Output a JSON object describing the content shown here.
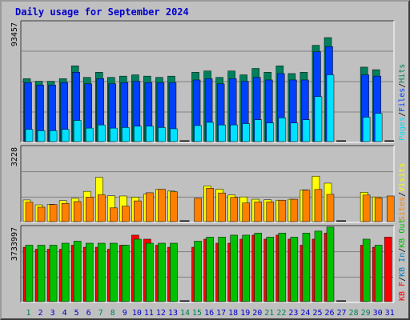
{
  "title": "Daily usage for September 2024",
  "colors": {
    "hits": "#00805c",
    "files": "#0040ff",
    "pages": "#00e0ff",
    "visits": "#ffff00",
    "sites": "#ff8000",
    "kb_f": "#ff0000",
    "kb_in": "#0080c0",
    "kb_out": "#00c000",
    "weekend_day": "#00805c",
    "weekday": "#0000cc",
    "separator": "#000000"
  },
  "chart_data": [
    {
      "type": "bar",
      "panel": "hits-files-pages",
      "ymax_label": "93457",
      "ylim": [
        0,
        93457
      ],
      "grid": true,
      "legend_position": "right, vertical",
      "legend": [
        {
          "label": "Pages",
          "color": "#00e0ff"
        },
        {
          "label": "/",
          "color": "#000000"
        },
        {
          "label": "Files",
          "color": "#0040ff"
        },
        {
          "label": "/",
          "color": "#000000"
        },
        {
          "label": "Hits",
          "color": "#00805c"
        }
      ],
      "categories": [
        "1",
        "2",
        "3",
        "4",
        "5",
        "6",
        "7",
        "8",
        "9",
        "10",
        "11",
        "12",
        "13",
        "14",
        "15",
        "16",
        "17",
        "18",
        "19",
        "20",
        "21",
        "22",
        "23",
        "24",
        "25",
        "26",
        "27",
        "28",
        "29",
        "30",
        "31"
      ],
      "series": [
        {
          "name": "Hits",
          "values": [
            49000,
            47000,
            47000,
            49000,
            59000,
            50000,
            54000,
            50000,
            51000,
            52000,
            51000,
            50000,
            51000,
            0,
            54000,
            55000,
            50000,
            55000,
            52000,
            57000,
            54000,
            59000,
            53000,
            54000,
            75000,
            81000,
            0,
            0,
            58000,
            56000,
            0
          ]
        },
        {
          "name": "Files",
          "values": [
            46000,
            44000,
            44000,
            46000,
            54000,
            45000,
            49000,
            45000,
            46000,
            47000,
            46000,
            46000,
            46000,
            0,
            48000,
            49000,
            45000,
            49000,
            47000,
            50000,
            48000,
            53000,
            48000,
            48000,
            70000,
            74000,
            0,
            0,
            52000,
            51000,
            0
          ]
        },
        {
          "name": "Pages",
          "values": [
            9500,
            8500,
            8500,
            9500,
            16500,
            10500,
            13000,
            10500,
            11000,
            12000,
            12000,
            11000,
            10000,
            0,
            12500,
            15000,
            13000,
            13000,
            14000,
            17000,
            14500,
            18500,
            14500,
            17000,
            35000,
            52000,
            0,
            0,
            19000,
            22000,
            0
          ]
        }
      ],
      "extra_small_bars": {
        "14": 2,
        "27": 2,
        "31": 0
      }
    },
    {
      "type": "bar",
      "panel": "visits-sites",
      "ymax_label": "3228",
      "ylim": [
        0,
        3228
      ],
      "grid": true,
      "legend_position": "right, vertical",
      "legend": [
        {
          "label": "Sites",
          "color": "#ff8000"
        },
        {
          "label": "/",
          "color": "#000000"
        },
        {
          "label": "Visits",
          "color": "#ffff00"
        }
      ],
      "categories": [
        "1",
        "2",
        "3",
        "4",
        "5",
        "6",
        "7",
        "8",
        "9",
        "10",
        "11",
        "12",
        "13",
        "14",
        "15",
        "16",
        "17",
        "18",
        "19",
        "20",
        "21",
        "22",
        "23",
        "24",
        "25",
        "26",
        "27",
        "28",
        "29",
        "30",
        "31"
      ],
      "series": [
        {
          "name": "Visits",
          "values": [
            930,
            720,
            740,
            900,
            1000,
            1300,
            1900,
            1110,
            1100,
            1050,
            1180,
            1380,
            1310,
            0,
            0,
            1530,
            1390,
            1140,
            1060,
            960,
            940,
            920,
            960,
            1360,
            1950,
            1650,
            0,
            0,
            1260,
            1060,
            0
          ]
        },
        {
          "name": "Sites",
          "values": [
            830,
            620,
            730,
            780,
            860,
            1050,
            1150,
            590,
            660,
            890,
            1240,
            1390,
            1280,
            0,
            1000,
            1430,
            1230,
            1040,
            800,
            840,
            840,
            920,
            960,
            1350,
            1380,
            1170,
            0,
            0,
            1140,
            1020,
            1100
          ]
        }
      ],
      "extra_small_bars": {
        "14": 2,
        "27": 2
      }
    },
    {
      "type": "bar",
      "panel": "kbytes",
      "ymax_label": "3733997",
      "ylim": [
        0,
        3733997
      ],
      "grid": true,
      "legend_position": "right, vertical",
      "legend": [
        {
          "label": "KB F",
          "color": "#ff0000"
        },
        {
          "label": "/",
          "color": "#000000"
        },
        {
          "label": "KB In",
          "color": "#0080c0"
        },
        {
          "label": "/",
          "color": "#000000"
        },
        {
          "label": "KB Out",
          "color": "#00c000"
        }
      ],
      "categories": [
        "1",
        "2",
        "3",
        "4",
        "5",
        "6",
        "7",
        "8",
        "9",
        "10",
        "11",
        "12",
        "13",
        "14",
        "15",
        "16",
        "17",
        "18",
        "19",
        "20",
        "21",
        "22",
        "23",
        "24",
        "25",
        "26",
        "27",
        "28",
        "29",
        "30",
        "31"
      ],
      "series": [
        {
          "name": "KB F",
          "values": [
            2700000,
            2600000,
            2600000,
            2600000,
            2800000,
            2700000,
            2700000,
            2600000,
            2800000,
            3300000,
            3100000,
            2800000,
            2700000,
            0,
            2700000,
            3100000,
            2900000,
            2900000,
            3100000,
            3300000,
            3100000,
            3300000,
            3100000,
            2800000,
            3100000,
            3400000,
            0,
            0,
            2800000,
            2700000,
            3200000
          ]
        },
        {
          "name": "KB Out",
          "values": [
            2800000,
            2800000,
            2800000,
            2900000,
            3000000,
            2900000,
            2900000,
            2900000,
            2800000,
            3100000,
            2900000,
            2900000,
            2900000,
            0,
            3000000,
            3200000,
            3200000,
            3300000,
            3300000,
            3400000,
            3200000,
            3400000,
            3200000,
            3400000,
            3500000,
            3700000,
            0,
            0,
            3100000,
            2800000,
            0
          ]
        }
      ],
      "extra_small_bars": {
        "14": 2,
        "27": 2
      }
    }
  ],
  "x_labels": [
    {
      "label": "1",
      "weekend": true
    },
    {
      "label": "2",
      "weekend": false
    },
    {
      "label": "3",
      "weekend": false
    },
    {
      "label": "4",
      "weekend": false
    },
    {
      "label": "5",
      "weekend": false
    },
    {
      "label": "6",
      "weekend": false
    },
    {
      "label": "7",
      "weekend": true
    },
    {
      "label": "8",
      "weekend": true
    },
    {
      "label": "9",
      "weekend": false
    },
    {
      "label": "10",
      "weekend": false
    },
    {
      "label": "11",
      "weekend": false
    },
    {
      "label": "12",
      "weekend": false
    },
    {
      "label": "13",
      "weekend": false
    },
    {
      "label": "14",
      "weekend": true
    },
    {
      "label": "15",
      "weekend": true
    },
    {
      "label": "16",
      "weekend": false
    },
    {
      "label": "17",
      "weekend": false
    },
    {
      "label": "18",
      "weekend": false
    },
    {
      "label": "19",
      "weekend": false
    },
    {
      "label": "20",
      "weekend": false
    },
    {
      "label": "21",
      "weekend": true
    },
    {
      "label": "22",
      "weekend": true
    },
    {
      "label": "23",
      "weekend": false
    },
    {
      "label": "24",
      "weekend": false
    },
    {
      "label": "25",
      "weekend": false
    },
    {
      "label": "26",
      "weekend": false
    },
    {
      "label": "27",
      "weekend": false
    },
    {
      "label": "28",
      "weekend": true
    },
    {
      "label": "29",
      "weekend": true
    },
    {
      "label": "30",
      "weekend": false
    },
    {
      "label": "31",
      "weekend": false
    }
  ]
}
